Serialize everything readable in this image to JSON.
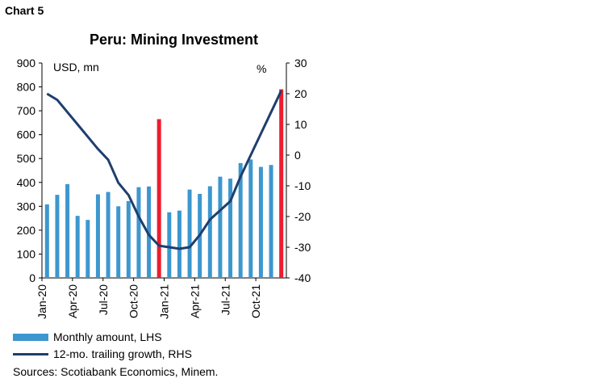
{
  "header": "Chart 5",
  "chart_data": {
    "type": "bar+line",
    "title": "Peru: Mining Investment",
    "left_unit": "USD, mn",
    "right_unit": "%",
    "ylim_left": [
      0,
      900
    ],
    "ylim_right": [
      -40,
      30
    ],
    "left_ticks": [
      0,
      100,
      200,
      300,
      400,
      500,
      600,
      700,
      800,
      900
    ],
    "right_ticks": [
      -40,
      -30,
      -20,
      -10,
      0,
      10,
      20,
      30
    ],
    "x_tick_labels": [
      "Jan-20",
      "Apr-20",
      "Jul-20",
      "Oct-20",
      "Jan-21",
      "Apr-21",
      "Jul-21",
      "Oct-21"
    ],
    "months": [
      "Jan-20",
      "Feb-20",
      "Mar-20",
      "Apr-20",
      "May-20",
      "Jun-20",
      "Jul-20",
      "Aug-20",
      "Sep-20",
      "Oct-20",
      "Nov-20",
      "Dec-20",
      "Jan-21",
      "Feb-21",
      "Mar-21",
      "Apr-21",
      "May-21",
      "Jun-21",
      "Jul-21",
      "Aug-21",
      "Sep-21",
      "Oct-21",
      "Nov-21",
      "Dec-21"
    ],
    "series": [
      {
        "name": "Monthly amount, LHS",
        "type": "bar",
        "axis": "left",
        "color": "#3d97cf",
        "highlight_color": "#ee1c2e",
        "highlight": [
          "Dec-20",
          "Dec-21"
        ],
        "values": [
          308,
          348,
          393,
          260,
          243,
          350,
          360,
          300,
          322,
          380,
          383,
          665,
          275,
          282,
          370,
          352,
          384,
          424,
          416,
          481,
          496,
          465,
          473,
          790
        ]
      },
      {
        "name": "12-mo. trailing growth, RHS",
        "type": "line",
        "axis": "right",
        "color": "#1f3e6e",
        "values": [
          20,
          18,
          14,
          10,
          6,
          2,
          -1.5,
          -9,
          -13,
          -20,
          -26,
          -29.5,
          -30,
          -30.5,
          -30,
          -26,
          -21,
          -18,
          -15,
          -7,
          0,
          7,
          14,
          21
        ]
      }
    ],
    "grid": false,
    "legend": "bottom"
  },
  "source": "Sources: Scotiabank Economics, Minem."
}
